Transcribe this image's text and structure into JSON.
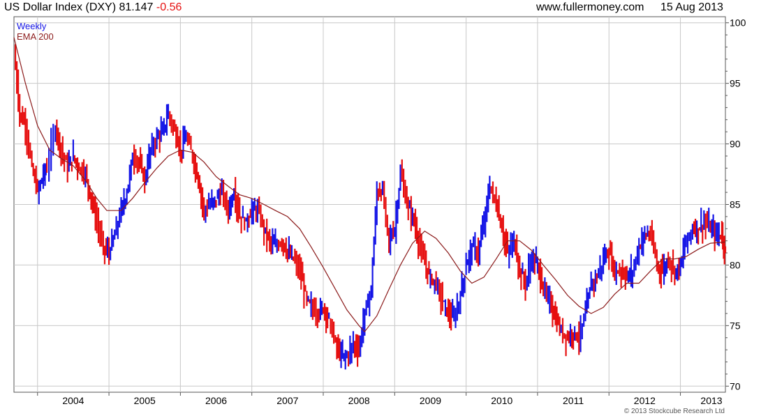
{
  "header": {
    "instrument": "US Dollar Index (DXY)",
    "last": "81.147",
    "change": "-0.56",
    "site": "www.fullermoney.com",
    "date": "15 Aug 2013"
  },
  "legend": {
    "weekly": "Weekly",
    "ema": "EMA 200"
  },
  "copyright": "© 2013 Stockcube Research Ltd",
  "colors": {
    "up": "#1414e6",
    "down": "#e60f0f",
    "ema": "#8b1a1a",
    "grid": "#c8c8c8",
    "change": "#e60f0f"
  },
  "chart_data": {
    "type": "line",
    "title": "US Dollar Index (DXY)",
    "xlabel": "",
    "ylabel": "",
    "xlim": [
      2003.67,
      2013.63
    ],
    "ylim": [
      69.5,
      100.5
    ],
    "yticks": [
      70,
      75,
      80,
      85,
      90,
      95,
      100
    ],
    "xticks": [
      "2004",
      "2005",
      "2006",
      "2007",
      "2008",
      "2009",
      "2010",
      "2011",
      "2012",
      "2013"
    ],
    "grid": true,
    "legend_position": "top-left",
    "series": [
      {
        "name": "Weekly",
        "x": [
          2003.67,
          2003.75,
          2003.83,
          2003.92,
          2004.0,
          2004.08,
          2004.13,
          2004.25,
          2004.33,
          2004.42,
          2004.5,
          2004.58,
          2004.67,
          2004.75,
          2004.83,
          2004.92,
          2005.0,
          2005.08,
          2005.17,
          2005.25,
          2005.33,
          2005.42,
          2005.5,
          2005.58,
          2005.67,
          2005.75,
          2005.83,
          2005.92,
          2006.0,
          2006.08,
          2006.17,
          2006.25,
          2006.33,
          2006.42,
          2006.5,
          2006.58,
          2006.67,
          2006.75,
          2006.83,
          2006.92,
          2007.0,
          2007.08,
          2007.17,
          2007.25,
          2007.33,
          2007.42,
          2007.5,
          2007.58,
          2007.67,
          2007.75,
          2007.83,
          2007.92,
          2008.0,
          2008.08,
          2008.17,
          2008.25,
          2008.33,
          2008.42,
          2008.5,
          2008.58,
          2008.67,
          2008.75,
          2008.83,
          2008.92,
          2009.0,
          2009.08,
          2009.17,
          2009.25,
          2009.33,
          2009.42,
          2009.5,
          2009.58,
          2009.67,
          2009.75,
          2009.83,
          2009.92,
          2010.0,
          2010.08,
          2010.17,
          2010.25,
          2010.33,
          2010.42,
          2010.5,
          2010.58,
          2010.67,
          2010.75,
          2010.83,
          2010.92,
          2011.0,
          2011.08,
          2011.17,
          2011.25,
          2011.33,
          2011.42,
          2011.5,
          2011.58,
          2011.67,
          2011.75,
          2011.83,
          2011.92,
          2012.0,
          2012.08,
          2012.17,
          2012.25,
          2012.33,
          2012.42,
          2012.5,
          2012.58,
          2012.67,
          2012.75,
          2012.83,
          2012.92,
          2013.0,
          2013.08,
          2013.17,
          2013.25,
          2013.33,
          2013.42,
          2013.5,
          2013.58,
          2013.63
        ],
        "values": [
          97.5,
          92.5,
          91.5,
          88.0,
          86.0,
          87.5,
          88.0,
          91.5,
          89.5,
          88.0,
          89.0,
          88.0,
          87.5,
          85.5,
          83.5,
          81.5,
          81.0,
          82.5,
          84.5,
          86.0,
          89.0,
          88.5,
          87.0,
          89.5,
          90.5,
          91.0,
          92.5,
          91.0,
          89.5,
          90.5,
          89.0,
          87.0,
          84.5,
          85.0,
          85.5,
          86.0,
          84.5,
          86.0,
          84.0,
          83.5,
          84.5,
          84.5,
          83.0,
          82.0,
          81.5,
          82.0,
          81.0,
          80.5,
          79.5,
          77.5,
          76.5,
          76.0,
          76.5,
          75.5,
          73.5,
          72.5,
          72.5,
          73.5,
          73.0,
          76.0,
          78.0,
          86.0,
          86.0,
          82.0,
          83.0,
          87.5,
          85.0,
          84.0,
          82.0,
          80.0,
          79.0,
          78.5,
          77.0,
          76.0,
          75.5,
          77.5,
          80.0,
          81.5,
          81.0,
          83.5,
          86.5,
          85.0,
          83.0,
          81.0,
          82.0,
          79.5,
          78.5,
          80.5,
          80.0,
          78.0,
          77.0,
          75.5,
          74.5,
          74.0,
          74.5,
          74.0,
          76.0,
          78.5,
          79.0,
          80.5,
          81.0,
          79.5,
          79.5,
          79.0,
          79.5,
          81.5,
          82.5,
          82.5,
          80.0,
          79.5,
          80.5,
          79.5,
          80.0,
          82.0,
          83.0,
          83.0,
          83.5,
          83.0,
          82.5,
          82.5,
          81.15
        ]
      },
      {
        "name": "EMA 200",
        "x": [
          2003.67,
          2003.83,
          2004.0,
          2004.17,
          2004.33,
          2004.5,
          2004.67,
          2004.83,
          2004.97,
          2005.17,
          2005.33,
          2005.5,
          2005.67,
          2005.83,
          2006.0,
          2006.17,
          2006.33,
          2006.5,
          2006.67,
          2006.83,
          2007.0,
          2007.17,
          2007.33,
          2007.5,
          2007.67,
          2007.83,
          2008.0,
          2008.17,
          2008.33,
          2008.5,
          2008.58,
          2008.75,
          2008.92,
          2009.08,
          2009.25,
          2009.42,
          2009.58,
          2009.75,
          2009.92,
          2010.08,
          2010.25,
          2010.42,
          2010.58,
          2010.75,
          2010.92,
          2011.08,
          2011.25,
          2011.42,
          2011.58,
          2011.75,
          2011.92,
          2012.08,
          2012.25,
          2012.42,
          2012.58,
          2012.75,
          2012.92,
          2013.08,
          2013.25,
          2013.42,
          2013.63
        ],
        "values": [
          98.8,
          95.0,
          91.5,
          89.5,
          88.8,
          88.2,
          87.0,
          85.5,
          84.5,
          84.5,
          85.5,
          86.8,
          88.0,
          89.0,
          89.5,
          89.3,
          88.5,
          87.3,
          86.5,
          85.8,
          85.5,
          85.0,
          84.5,
          84.0,
          83.0,
          81.5,
          79.8,
          78.0,
          76.3,
          75.0,
          74.5,
          75.8,
          78.0,
          80.0,
          81.8,
          82.8,
          82.2,
          81.0,
          79.5,
          78.5,
          79.0,
          80.5,
          82.0,
          82.0,
          81.2,
          80.0,
          78.8,
          77.5,
          76.6,
          76.0,
          76.5,
          77.6,
          78.5,
          78.5,
          79.5,
          80.5,
          80.5,
          80.7,
          81.3,
          81.8,
          81.9
        ]
      }
    ]
  }
}
